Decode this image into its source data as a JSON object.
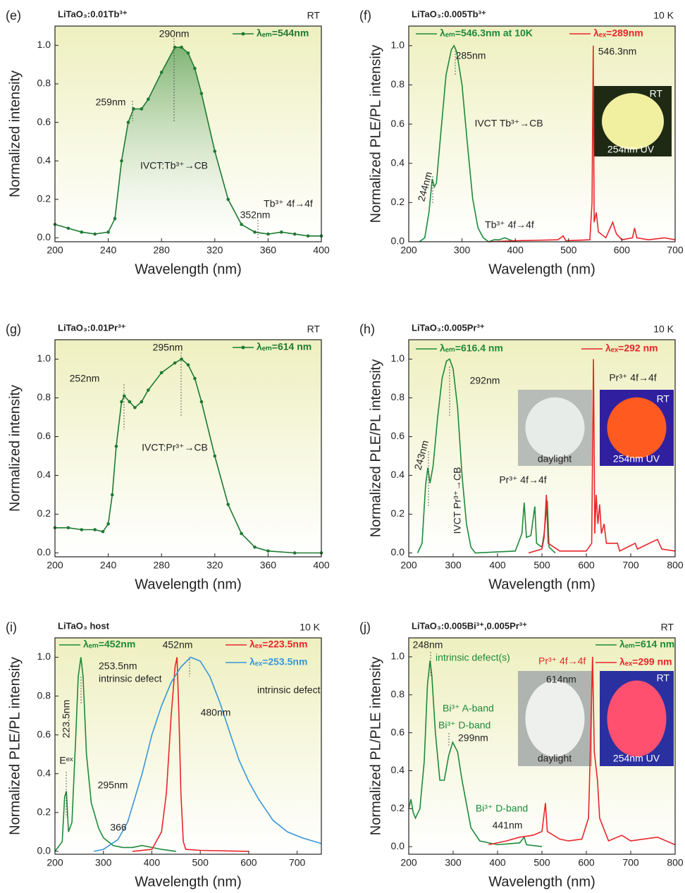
{
  "chart_data": [
    {
      "type": "line",
      "panel": "(e)",
      "title": "LiTaO₃:0.01Tb³⁺",
      "condition": "RT",
      "xlabel": "Wavelength (nm)",
      "ylabel": "Normalized intensity",
      "xlim": [
        200,
        400
      ],
      "xticks": [
        200,
        240,
        280,
        320,
        360,
        400
      ],
      "ylim": [
        -0.02,
        1.1
      ],
      "yticks": [
        {
          "value": 0,
          "label": "0.0"
        },
        0.2,
        0.4,
        0.6,
        0.8,
        {
          "value": 1,
          "label": "1.0"
        }
      ],
      "fill_area": true,
      "series": [
        {
          "name": "λₑₘ=544nm",
          "color": "#1e7a32",
          "marker": "circle",
          "x": [
            200,
            210,
            220,
            230,
            240,
            245,
            250,
            255,
            259,
            265,
            270,
            280,
            290,
            295,
            300,
            305,
            310,
            320,
            330,
            340,
            350,
            360,
            370,
            380,
            390,
            400
          ],
          "values": [
            0.07,
            0.05,
            0.03,
            0.02,
            0.03,
            0.1,
            0.4,
            0.6,
            0.67,
            0.67,
            0.72,
            0.86,
            0.99,
            0.99,
            0.96,
            0.88,
            0.75,
            0.45,
            0.2,
            0.07,
            0.03,
            0.02,
            0.03,
            0.02,
            0.01,
            0.01
          ]
        }
      ],
      "annotations": [
        "290nm",
        "259nm",
        "IVCT:Tb³⁺→CB",
        "352nm",
        "Tb³⁺ 4f→4f"
      ]
    },
    {
      "type": "line",
      "panel": "(f)",
      "title": "LiTaO₃:0.005Tb³⁺",
      "condition": "10 K",
      "xlabel": "Wavelength (nm)",
      "ylabel": "Normalized PLE/PL intensity",
      "xlim": [
        200,
        700
      ],
      "xticks": [
        200,
        300,
        400,
        500,
        600,
        700
      ],
      "ylim": [
        0,
        1.1
      ],
      "yticks": [
        {
          "value": 0,
          "label": "0.0"
        },
        0.2,
        0.4,
        0.6,
        0.8,
        {
          "value": 1,
          "label": "1.0"
        }
      ],
      "series": [
        {
          "name": "λₑₘ=546.3nm at 10K",
          "color": "#1e8a3a",
          "x": [
            220,
            230,
            238,
            244,
            248,
            252,
            260,
            270,
            280,
            285,
            290,
            300,
            310,
            320,
            330,
            340,
            350,
            360,
            370,
            380,
            390,
            400
          ],
          "values": [
            0,
            0.02,
            0.15,
            0.32,
            0.28,
            0.3,
            0.55,
            0.85,
            0.98,
            1.0,
            0.97,
            0.8,
            0.5,
            0.22,
            0.07,
            0.02,
            0,
            0.01,
            0.01,
            0.02,
            0.01,
            0
          ]
        },
        {
          "name": "λₑₓ=289nm",
          "color": "#e8252a",
          "x": [
            350,
            400,
            480,
            490,
            495,
            540,
            544,
            546.3,
            548,
            552,
            556,
            570,
            583,
            586,
            590,
            600,
            620,
            624,
            628,
            650,
            680,
            700
          ],
          "values": [
            0,
            0.005,
            0.01,
            0.03,
            0.005,
            0.01,
            0.2,
            1.0,
            0.1,
            0.15,
            0.05,
            0.02,
            0.1,
            0.07,
            0.04,
            0.01,
            0.02,
            0.07,
            0.02,
            0.01,
            0.02,
            0.01
          ]
        }
      ],
      "annotations": [
        "285nm",
        "IVCT Tb³⁺→CB",
        "244nm",
        "Tb³⁺ 4f→4f",
        "546.3nm",
        "RT",
        "254nm UV"
      ]
    },
    {
      "type": "line",
      "panel": "(g)",
      "title": "LiTaO₃:0.01Pr³⁺",
      "condition": "RT",
      "xlabel": "Wavelength (nm)",
      "ylabel": "Normalized intensity",
      "xlim": [
        200,
        400
      ],
      "xticks": [
        200,
        240,
        280,
        320,
        360,
        400
      ],
      "ylim": [
        -0.02,
        1.1
      ],
      "yticks": [
        {
          "value": 0,
          "label": "0.0"
        },
        0.2,
        0.4,
        0.6,
        0.8,
        {
          "value": 1,
          "label": "1.0"
        }
      ],
      "series": [
        {
          "name": "λₑₘ=614 nm",
          "color": "#1e7a32",
          "marker": "circle",
          "x": [
            200,
            210,
            220,
            230,
            236,
            240,
            243,
            246,
            250,
            252,
            256,
            260,
            265,
            270,
            280,
            290,
            295,
            300,
            305,
            310,
            320,
            330,
            340,
            350,
            360,
            380,
            400
          ],
          "values": [
            0.13,
            0.13,
            0.12,
            0.12,
            0.11,
            0.15,
            0.3,
            0.55,
            0.78,
            0.81,
            0.78,
            0.75,
            0.78,
            0.84,
            0.93,
            0.98,
            1.0,
            0.97,
            0.9,
            0.78,
            0.5,
            0.25,
            0.1,
            0.03,
            0.01,
            0,
            0
          ]
        }
      ],
      "annotations": [
        "295nm",
        "252nm",
        "IVCT:Pr³⁺→CB"
      ]
    },
    {
      "type": "line",
      "panel": "(h)",
      "title": "LiTaO₃:0.005Pr³⁺",
      "condition": "10 K",
      "xlabel": "Wavelength (nm)",
      "ylabel": "Normalized PLE/PL intensity",
      "xlim": [
        200,
        800
      ],
      "xticks": [
        200,
        300,
        400,
        500,
        600,
        700,
        800
      ],
      "ylim": [
        -0.02,
        1.1
      ],
      "yticks": [
        {
          "value": 0,
          "label": "0.0"
        },
        0.2,
        0.4,
        0.6,
        0.8,
        {
          "value": 1,
          "label": "1.0"
        }
      ],
      "series": [
        {
          "name": "λₑₘ=616.4 nm",
          "color": "#1e8a3a",
          "x": [
            220,
            230,
            238,
            243,
            248,
            255,
            265,
            275,
            285,
            292,
            300,
            310,
            320,
            330,
            340,
            350,
            440,
            455,
            460,
            465,
            475,
            484,
            488,
            500,
            505,
            512,
            516,
            530
          ],
          "values": [
            0,
            0.05,
            0.35,
            0.44,
            0.36,
            0.45,
            0.7,
            0.9,
            0.99,
            1.0,
            0.95,
            0.75,
            0.4,
            0.15,
            0.03,
            0,
            0.01,
            0.1,
            0.26,
            0.08,
            0.09,
            0.24,
            0.05,
            0.03,
            0.1,
            0.27,
            0.03,
            0
          ]
        },
        {
          "name": "λₑₓ=292 nm",
          "color": "#e8252a",
          "x": [
            470,
            500,
            505,
            510,
            514,
            540,
            600,
            612,
            616,
            619,
            622,
            626,
            630,
            634,
            640,
            645,
            670,
            675,
            710,
            715,
            760,
            770,
            800
          ],
          "values": [
            0,
            0.02,
            0.08,
            0.3,
            0.05,
            0.01,
            0.01,
            0.05,
            1.0,
            0.1,
            0.3,
            0.15,
            0.25,
            0.1,
            0.15,
            0.05,
            0.05,
            0.01,
            0.05,
            0.02,
            0.07,
            0.02,
            0.01
          ]
        }
      ],
      "annotations": [
        "292nm",
        "243nm",
        "IVCT Pr³⁺→CB",
        "Pr³⁺ 4f→4f",
        "Pr³⁺ 4f→4f",
        "daylight",
        "RT",
        "254nm UV"
      ]
    },
    {
      "type": "line",
      "panel": "(i)",
      "title": "LiTaO₃ host",
      "condition": "10 K",
      "xlabel": "Wavelength (nm)",
      "ylabel": "Normalized PLE/PL intensity",
      "xlim": [
        200,
        750
      ],
      "xticks": [
        200,
        300,
        400,
        500,
        600,
        700
      ],
      "ylim": [
        -0.015,
        1.1
      ],
      "yticks": [
        {
          "value": 0,
          "label": "0.0"
        },
        0.2,
        0.4,
        0.6,
        0.8,
        {
          "value": 1,
          "label": "1.0"
        }
      ],
      "series": [
        {
          "name": "λₑₘ=452nm",
          "color": "#1e8a3a",
          "x": [
            200,
            215,
            220,
            223.5,
            228,
            235,
            243,
            248,
            253.5,
            258,
            265,
            275,
            290,
            300,
            320,
            340,
            360,
            380,
            400,
            420,
            450
          ],
          "values": [
            0,
            0.05,
            0.28,
            0.31,
            0.1,
            0.15,
            0.6,
            0.9,
            1.0,
            0.9,
            0.5,
            0.25,
            0.12,
            0.07,
            0.03,
            0.02,
            0.02,
            0.03,
            0.02,
            0.01,
            0
          ]
        },
        {
          "name": "λₑₓ=223.5nm",
          "color": "#e8252a",
          "x": [
            360,
            400,
            420,
            430,
            440,
            448,
            452,
            456,
            460,
            465,
            470,
            500,
            600
          ],
          "values": [
            0,
            0.01,
            0.1,
            0.3,
            0.7,
            0.95,
            1.0,
            0.7,
            0.3,
            0.05,
            0.01,
            0.005,
            0
          ]
        },
        {
          "name": "λₑₓ=253.5nm",
          "color": "#3a96d8",
          "x": [
            280,
            300,
            330,
            350,
            380,
            400,
            420,
            440,
            460,
            480,
            500,
            520,
            540,
            560,
            580,
            600,
            620,
            650,
            680,
            710,
            750
          ],
          "values": [
            0,
            0.01,
            0.06,
            0.15,
            0.4,
            0.6,
            0.75,
            0.87,
            0.95,
            1.0,
            0.98,
            0.9,
            0.77,
            0.62,
            0.47,
            0.36,
            0.27,
            0.16,
            0.1,
            0.07,
            0.04
          ]
        }
      ],
      "annotations": [
        "253.5nm",
        "intrinsic defect",
        "452nm",
        "480nm",
        "intrinsic defect",
        "223.5nm",
        "Eᵉˣ",
        "295nm",
        "366"
      ]
    },
    {
      "type": "line",
      "panel": "(j)",
      "title": "LiTaO₃:0.005Bi³⁺,0.005Pr³⁺",
      "condition": "RT",
      "xlabel": "Wavelength (nm)",
      "ylabel": "Normalized PL/PLE intensity",
      "xlim": [
        200,
        800
      ],
      "xticks": [
        200,
        300,
        400,
        500,
        600,
        700,
        800
      ],
      "ylim": [
        -0.04,
        1.1
      ],
      "yticks": [
        {
          "value": 0,
          "label": "0.0"
        },
        0.2,
        0.4,
        0.6,
        0.8,
        {
          "value": 1,
          "label": "1.0"
        }
      ],
      "series": [
        {
          "name": "λₑₘ=614 nm",
          "color": "#1e8a3a",
          "x": [
            200,
            205,
            210,
            215,
            225,
            235,
            242,
            248,
            252,
            260,
            270,
            280,
            290,
            299,
            310,
            320,
            340,
            360,
            400,
            450,
            460,
            465,
            500
          ],
          "values": [
            0.2,
            0.25,
            0.18,
            0.15,
            0.2,
            0.45,
            0.85,
            0.98,
            0.9,
            0.6,
            0.35,
            0.35,
            0.48,
            0.55,
            0.5,
            0.35,
            0.1,
            0.03,
            0.01,
            0.02,
            0.05,
            0.01,
            0
          ]
        },
        {
          "name": "λₑₓ=299 nm",
          "color": "#e8252a",
          "x": [
            380,
            420,
            450,
            480,
            500,
            508,
            512,
            540,
            560,
            590,
            605,
            610,
            614,
            618,
            625,
            630,
            650,
            680,
            700,
            760,
            800
          ],
          "values": [
            0.01,
            0.03,
            0.05,
            0.06,
            0.08,
            0.23,
            0.08,
            0.04,
            0.03,
            0.04,
            0.15,
            0.6,
            1.0,
            0.5,
            0.35,
            0.15,
            0.03,
            0.06,
            0.03,
            0.05,
            0.01
          ]
        }
      ],
      "annotations": [
        "248nm",
        "intrinsic defect(s)",
        "Bi³⁺ A-band",
        "Bi³⁺ D-band",
        "299nm",
        "Bi³⁺ D-band",
        "441nm",
        "Pr³⁺ 4f→4f",
        "614nm",
        "daylight",
        "RT",
        "254nm UV"
      ]
    }
  ]
}
